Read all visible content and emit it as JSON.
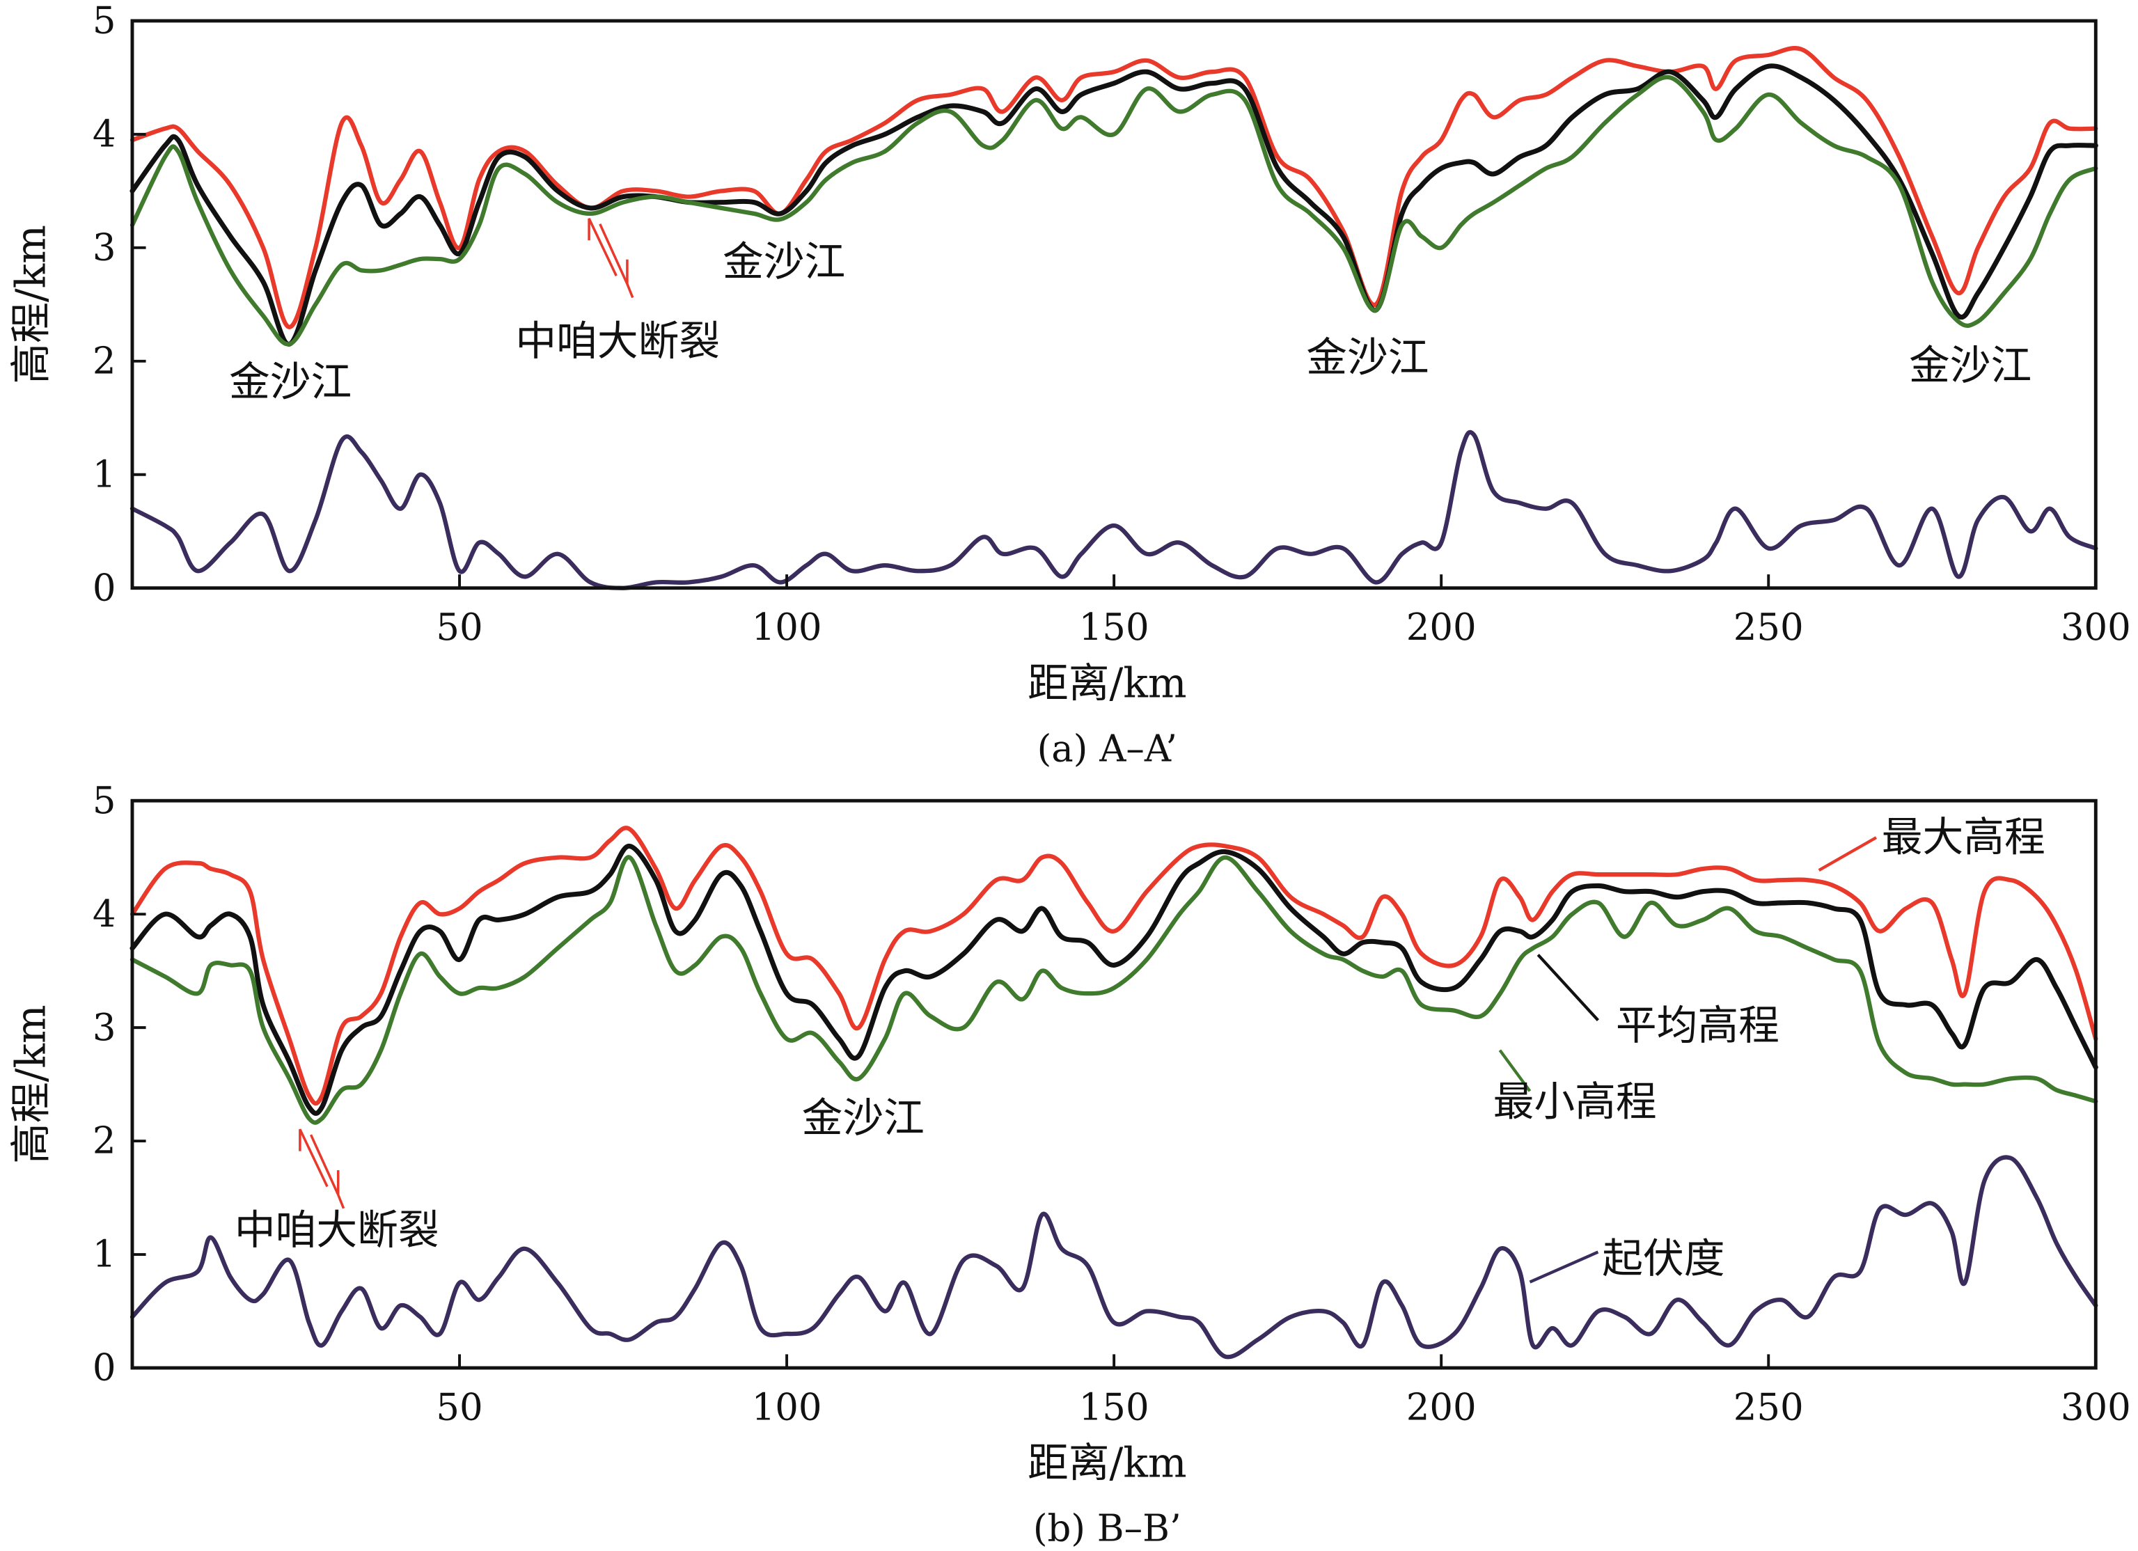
{
  "colors": {
    "max": "#e8392b",
    "mean": "#111111",
    "min": "#3f7a2d",
    "relief": "#3a2c5c"
  },
  "chart_data": [
    {
      "type": "line",
      "caption": "(a) A–A’",
      "xlabel": "距离/km",
      "ylabel": "高程/km",
      "xlim": [
        0,
        300
      ],
      "ylim": [
        0,
        5
      ],
      "xticks": [
        "50",
        "100",
        "150",
        "200",
        "250",
        "300"
      ],
      "yticks": [
        "0",
        "1",
        "2",
        "3",
        "4",
        "5"
      ],
      "annotations": [
        "金沙江",
        "中咱大断裂",
        "金沙江",
        "金沙江",
        "金沙江"
      ],
      "x": [
        0,
        5,
        7,
        10,
        15,
        20,
        24,
        28,
        32,
        35,
        38,
        41,
        44,
        47,
        50,
        53,
        56,
        60,
        65,
        70,
        75,
        80,
        85,
        90,
        95,
        99,
        103,
        106,
        110,
        115,
        120,
        125,
        130,
        133,
        138,
        142,
        145,
        150,
        155,
        160,
        165,
        170,
        175,
        180,
        185,
        190,
        194,
        197,
        200,
        203,
        205,
        208,
        212,
        216,
        220,
        225,
        230,
        235,
        240,
        242,
        245,
        250,
        255,
        260,
        265,
        270,
        275,
        279,
        282,
        286,
        290,
        293,
        296,
        300
      ],
      "series": [
        {
          "name": "最大高程",
          "values": [
            3.95,
            4.05,
            4.05,
            3.85,
            3.55,
            3.0,
            2.3,
            3.0,
            4.1,
            3.9,
            3.4,
            3.6,
            3.85,
            3.4,
            3.0,
            3.6,
            3.85,
            3.85,
            3.55,
            3.35,
            3.5,
            3.5,
            3.45,
            3.5,
            3.5,
            3.3,
            3.6,
            3.85,
            3.95,
            4.1,
            4.3,
            4.35,
            4.4,
            4.2,
            4.5,
            4.3,
            4.5,
            4.55,
            4.65,
            4.5,
            4.55,
            4.5,
            3.8,
            3.6,
            3.15,
            2.5,
            3.5,
            3.8,
            3.95,
            4.3,
            4.35,
            4.15,
            4.3,
            4.35,
            4.5,
            4.65,
            4.6,
            4.55,
            4.6,
            4.4,
            4.65,
            4.7,
            4.75,
            4.5,
            4.3,
            3.8,
            3.1,
            2.6,
            3.0,
            3.45,
            3.7,
            4.1,
            4.05,
            4.05
          ]
        },
        {
          "name": "平均高程",
          "values": [
            3.5,
            3.9,
            3.95,
            3.55,
            3.1,
            2.7,
            2.15,
            2.8,
            3.4,
            3.55,
            3.2,
            3.3,
            3.45,
            3.2,
            2.95,
            3.4,
            3.8,
            3.8,
            3.5,
            3.35,
            3.45,
            3.45,
            3.4,
            3.4,
            3.4,
            3.3,
            3.5,
            3.75,
            3.9,
            4.0,
            4.15,
            4.25,
            4.2,
            4.1,
            4.4,
            4.2,
            4.35,
            4.45,
            4.55,
            4.4,
            4.45,
            4.4,
            3.7,
            3.4,
            3.1,
            2.45,
            3.3,
            3.55,
            3.7,
            3.75,
            3.75,
            3.65,
            3.8,
            3.9,
            4.15,
            4.35,
            4.4,
            4.55,
            4.3,
            4.15,
            4.4,
            4.6,
            4.5,
            4.3,
            4.0,
            3.6,
            2.95,
            2.4,
            2.6,
            3.0,
            3.45,
            3.85,
            3.9,
            3.9
          ]
        },
        {
          "name": "最小高程",
          "values": [
            3.2,
            3.8,
            3.85,
            3.4,
            2.8,
            2.4,
            2.15,
            2.5,
            2.85,
            2.8,
            2.8,
            2.85,
            2.9,
            2.9,
            2.9,
            3.2,
            3.7,
            3.65,
            3.4,
            3.3,
            3.4,
            3.45,
            3.4,
            3.35,
            3.3,
            3.25,
            3.4,
            3.6,
            3.75,
            3.85,
            4.1,
            4.2,
            3.9,
            3.95,
            4.3,
            4.05,
            4.15,
            4.0,
            4.4,
            4.2,
            4.35,
            4.3,
            3.55,
            3.3,
            3.0,
            2.45,
            3.2,
            3.1,
            3.0,
            3.2,
            3.3,
            3.4,
            3.55,
            3.7,
            3.8,
            4.1,
            4.35,
            4.5,
            4.2,
            3.95,
            4.05,
            4.35,
            4.1,
            3.9,
            3.8,
            3.55,
            2.7,
            2.35,
            2.35,
            2.6,
            2.9,
            3.3,
            3.6,
            3.7
          ]
        },
        {
          "name": "起伏度",
          "values": [
            0.7,
            0.55,
            0.45,
            0.15,
            0.4,
            0.65,
            0.15,
            0.6,
            1.3,
            1.2,
            0.95,
            0.7,
            1.0,
            0.75,
            0.15,
            0.4,
            0.3,
            0.1,
            0.3,
            0.05,
            0.0,
            0.05,
            0.05,
            0.1,
            0.2,
            0.05,
            0.2,
            0.3,
            0.15,
            0.2,
            0.15,
            0.2,
            0.45,
            0.3,
            0.35,
            0.1,
            0.3,
            0.55,
            0.3,
            0.4,
            0.2,
            0.1,
            0.35,
            0.3,
            0.35,
            0.05,
            0.3,
            0.4,
            0.4,
            1.2,
            1.35,
            0.85,
            0.75,
            0.7,
            0.75,
            0.3,
            0.2,
            0.15,
            0.25,
            0.4,
            0.7,
            0.35,
            0.55,
            0.6,
            0.7,
            0.2,
            0.7,
            0.1,
            0.6,
            0.8,
            0.5,
            0.7,
            0.45,
            0.35
          ]
        }
      ]
    },
    {
      "type": "line",
      "caption": "(b) B–B’",
      "xlabel": "距离/km",
      "ylabel": "高程/km",
      "xlim": [
        0,
        300
      ],
      "ylim": [
        0,
        5
      ],
      "xticks": [
        "50",
        "100",
        "150",
        "200",
        "250",
        "300"
      ],
      "yticks": [
        "0",
        "1",
        "2",
        "3",
        "4",
        "5"
      ],
      "annotations": [
        "中咱大断裂",
        "金沙江"
      ],
      "legend": [
        "最大高程",
        "平均高程",
        "最小高程",
        "起伏度"
      ],
      "x": [
        0,
        5,
        10,
        12,
        15,
        18,
        20,
        24,
        27,
        29,
        32,
        35,
        38,
        41,
        44,
        47,
        50,
        53,
        56,
        60,
        65,
        70,
        73,
        76,
        80,
        83,
        86,
        90,
        93,
        96,
        100,
        104,
        108,
        111,
        115,
        118,
        122,
        127,
        132,
        136,
        139,
        142,
        146,
        150,
        155,
        160,
        163,
        167,
        172,
        177,
        182,
        185,
        188,
        191,
        194,
        197,
        202,
        206,
        209,
        212,
        214,
        217,
        220,
        224,
        228,
        232,
        236,
        240,
        244,
        248,
        252,
        256,
        260,
        264,
        267,
        271,
        275,
        278,
        280,
        283,
        287,
        291,
        294,
        297,
        300
      ],
      "series": [
        {
          "name": "最大高程",
          "values": [
            4.0,
            4.4,
            4.45,
            4.4,
            4.35,
            4.2,
            3.6,
            2.9,
            2.4,
            2.4,
            3.0,
            3.1,
            3.3,
            3.8,
            4.1,
            4.0,
            4.05,
            4.2,
            4.3,
            4.45,
            4.5,
            4.5,
            4.65,
            4.75,
            4.4,
            4.05,
            4.3,
            4.6,
            4.5,
            4.2,
            3.65,
            3.6,
            3.3,
            3.0,
            3.6,
            3.85,
            3.85,
            4.0,
            4.3,
            4.3,
            4.5,
            4.45,
            4.1,
            3.85,
            4.2,
            4.5,
            4.6,
            4.6,
            4.5,
            4.15,
            4.0,
            3.9,
            3.8,
            4.15,
            4.0,
            3.65,
            3.55,
            3.8,
            4.3,
            4.15,
            3.95,
            4.2,
            4.35,
            4.35,
            4.35,
            4.35,
            4.35,
            4.4,
            4.4,
            4.3,
            4.3,
            4.3,
            4.25,
            4.1,
            3.85,
            4.05,
            4.1,
            3.6,
            3.3,
            4.2,
            4.3,
            4.15,
            3.9,
            3.5,
            2.9
          ]
        },
        {
          "name": "平均高程",
          "values": [
            3.7,
            4.0,
            3.8,
            3.9,
            4.0,
            3.8,
            3.2,
            2.7,
            2.3,
            2.3,
            2.8,
            3.0,
            3.1,
            3.5,
            3.85,
            3.85,
            3.6,
            3.95,
            3.95,
            4.0,
            4.15,
            4.2,
            4.35,
            4.6,
            4.3,
            3.85,
            3.95,
            4.35,
            4.25,
            3.85,
            3.3,
            3.2,
            2.9,
            2.75,
            3.35,
            3.5,
            3.45,
            3.65,
            3.95,
            3.85,
            4.05,
            3.8,
            3.75,
            3.55,
            3.8,
            4.3,
            4.45,
            4.55,
            4.4,
            4.05,
            3.8,
            3.65,
            3.75,
            3.75,
            3.7,
            3.4,
            3.35,
            3.6,
            3.85,
            3.85,
            3.8,
            3.95,
            4.2,
            4.25,
            4.2,
            4.2,
            4.15,
            4.2,
            4.2,
            4.1,
            4.1,
            4.1,
            4.05,
            3.95,
            3.3,
            3.2,
            3.2,
            2.95,
            2.85,
            3.35,
            3.4,
            3.6,
            3.35,
            3.0,
            2.65
          ]
        },
        {
          "name": "最小高程",
          "values": [
            3.6,
            3.45,
            3.3,
            3.55,
            3.55,
            3.5,
            3.0,
            2.55,
            2.2,
            2.2,
            2.45,
            2.5,
            2.8,
            3.3,
            3.65,
            3.45,
            3.3,
            3.35,
            3.35,
            3.45,
            3.7,
            3.95,
            4.1,
            4.5,
            3.9,
            3.5,
            3.55,
            3.8,
            3.7,
            3.3,
            2.9,
            2.95,
            2.7,
            2.55,
            2.9,
            3.3,
            3.1,
            3.0,
            3.4,
            3.25,
            3.5,
            3.35,
            3.3,
            3.35,
            3.6,
            4.0,
            4.2,
            4.5,
            4.2,
            3.85,
            3.65,
            3.6,
            3.5,
            3.45,
            3.5,
            3.2,
            3.15,
            3.1,
            3.3,
            3.6,
            3.7,
            3.8,
            4.0,
            4.1,
            3.8,
            4.1,
            3.9,
            3.95,
            4.05,
            3.85,
            3.8,
            3.7,
            3.6,
            3.5,
            2.85,
            2.6,
            2.55,
            2.5,
            2.5,
            2.5,
            2.55,
            2.55,
            2.45,
            2.4,
            2.35
          ]
        },
        {
          "name": "起伏度",
          "values": [
            0.45,
            0.75,
            0.85,
            1.15,
            0.8,
            0.6,
            0.65,
            0.95,
            0.4,
            0.2,
            0.5,
            0.7,
            0.35,
            0.55,
            0.45,
            0.3,
            0.75,
            0.6,
            0.8,
            1.05,
            0.75,
            0.35,
            0.3,
            0.25,
            0.4,
            0.45,
            0.7,
            1.1,
            0.9,
            0.35,
            0.3,
            0.35,
            0.65,
            0.8,
            0.5,
            0.75,
            0.3,
            0.95,
            0.9,
            0.7,
            1.35,
            1.05,
            0.9,
            0.4,
            0.5,
            0.45,
            0.4,
            0.1,
            0.25,
            0.45,
            0.5,
            0.4,
            0.2,
            0.75,
            0.55,
            0.2,
            0.3,
            0.7,
            1.05,
            0.85,
            0.2,
            0.35,
            0.2,
            0.5,
            0.45,
            0.3,
            0.6,
            0.4,
            0.2,
            0.5,
            0.6,
            0.45,
            0.8,
            0.85,
            1.4,
            1.35,
            1.45,
            1.2,
            0.75,
            1.65,
            1.85,
            1.5,
            1.1,
            0.8,
            0.55
          ]
        }
      ]
    }
  ]
}
